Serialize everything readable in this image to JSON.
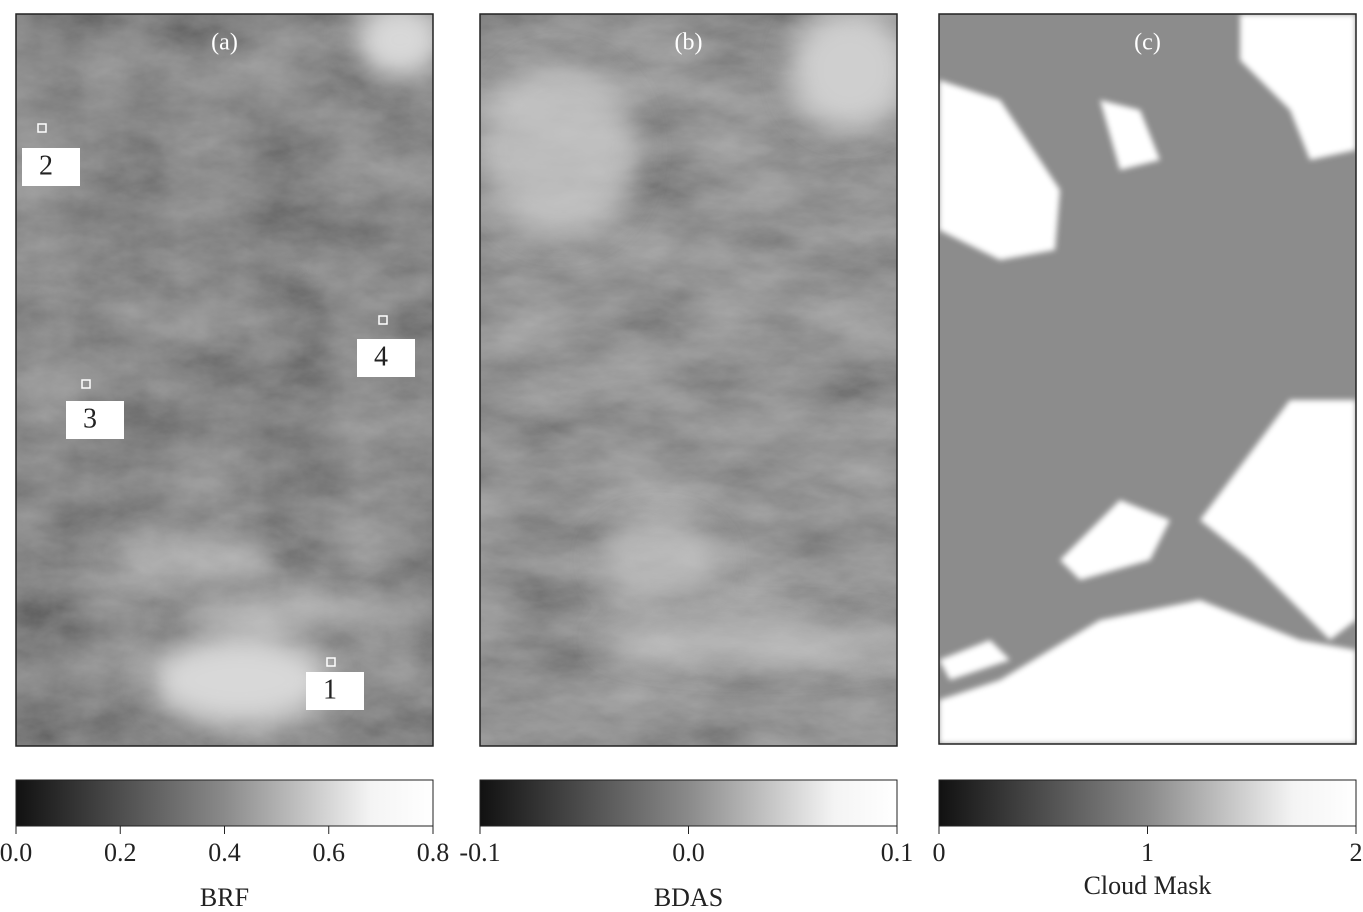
{
  "panels": [
    {
      "label": "(a)",
      "markers": [
        "2",
        "3",
        "4",
        "1"
      ],
      "colorbar": {
        "ticks": [
          "0.0",
          "0.2",
          "0.4",
          "0.6",
          "0.8"
        ],
        "label": "BRF"
      }
    },
    {
      "label": "(b)",
      "markers": [],
      "colorbar": {
        "ticks": [
          "-0.1",
          "0.0",
          "0.1"
        ],
        "label": "BDAS"
      }
    },
    {
      "label": "(c)",
      "markers": [],
      "colorbar": {
        "ticks": [
          "0",
          "1",
          "2"
        ],
        "label": "Cloud Mask"
      }
    }
  ]
}
